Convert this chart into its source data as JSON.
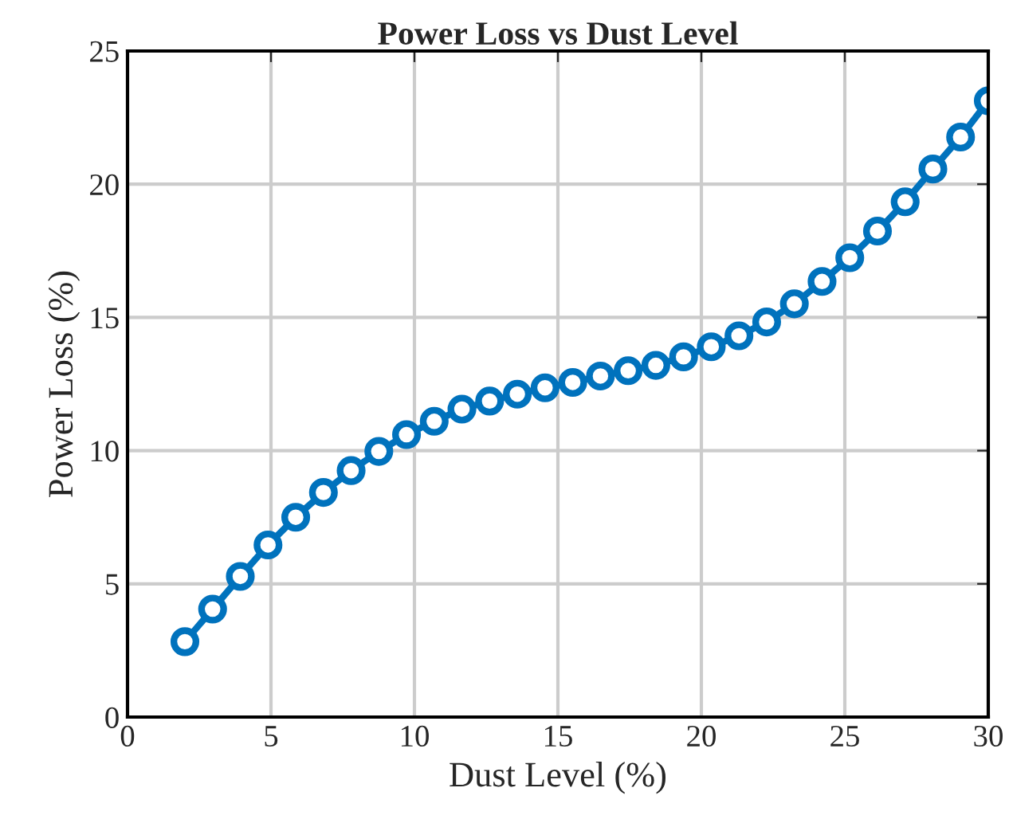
{
  "chart_data": {
    "type": "line",
    "title": "Power Loss vs Dust Level",
    "xlabel": "Dust Level (%)",
    "ylabel": "Power Loss (%)",
    "x": [
      2,
      2.9655,
      3.931,
      4.8966,
      5.8621,
      6.8276,
      7.7931,
      8.7586,
      9.7241,
      10.6897,
      11.6552,
      12.6207,
      13.5862,
      14.5517,
      15.5172,
      16.4828,
      17.4483,
      18.4138,
      19.3793,
      20.3448,
      21.3103,
      22.2759,
      23.2414,
      24.2069,
      25.1724,
      26.1379,
      27.1034,
      28.069,
      29.0345,
      30
    ],
    "series": [
      {
        "color": "#0072bd",
        "values": [
          2.83,
          4.05,
          5.28,
          6.46,
          7.5,
          8.43,
          9.25,
          9.97,
          10.6,
          11.1,
          11.56,
          11.86,
          12.12,
          12.36,
          12.56,
          12.8,
          13.0,
          13.2,
          13.52,
          13.9,
          14.31,
          14.83,
          15.51,
          16.35,
          17.24,
          18.24,
          19.34,
          20.57,
          21.77,
          23.13
        ]
      }
    ],
    "xlim": [
      0,
      30
    ],
    "ylim": [
      0,
      25
    ],
    "xticks": [
      0,
      5,
      10,
      15,
      20,
      25,
      30
    ],
    "yticks": [
      0,
      5,
      10,
      15,
      20,
      25
    ],
    "grid": true,
    "marker": "circle",
    "line_style": "solid"
  }
}
